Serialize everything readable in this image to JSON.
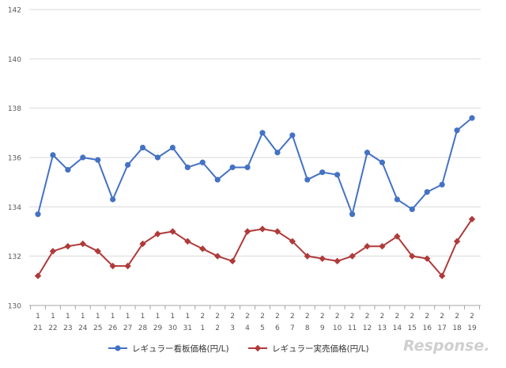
{
  "chart_data": {
    "type": "line",
    "categories": [
      [
        "1",
        "21"
      ],
      [
        "1",
        "22"
      ],
      [
        "1",
        "23"
      ],
      [
        "1",
        "24"
      ],
      [
        "1",
        "25"
      ],
      [
        "1",
        "26"
      ],
      [
        "1",
        "27"
      ],
      [
        "1",
        "28"
      ],
      [
        "1",
        "29"
      ],
      [
        "1",
        "30"
      ],
      [
        "1",
        "31"
      ],
      [
        "2",
        "1"
      ],
      [
        "2",
        "2"
      ],
      [
        "2",
        "3"
      ],
      [
        "2",
        "4"
      ],
      [
        "2",
        "5"
      ],
      [
        "2",
        "6"
      ],
      [
        "2",
        "7"
      ],
      [
        "2",
        "8"
      ],
      [
        "2",
        "9"
      ],
      [
        "2",
        "10"
      ],
      [
        "2",
        "11"
      ],
      [
        "2",
        "12"
      ],
      [
        "2",
        "13"
      ],
      [
        "2",
        "14"
      ],
      [
        "2",
        "15"
      ],
      [
        "2",
        "16"
      ],
      [
        "2",
        "17"
      ],
      [
        "2",
        "18"
      ],
      [
        "2",
        "19"
      ]
    ],
    "series": [
      {
        "name": "レギュラー看板価格(円/L)",
        "color": "#4472C4",
        "marker": "circle",
        "values": [
          133.7,
          136.1,
          135.5,
          136.0,
          135.9,
          134.3,
          135.7,
          136.4,
          136.0,
          136.4,
          135.6,
          135.8,
          135.1,
          135.6,
          135.6,
          137.0,
          136.2,
          136.9,
          135.1,
          135.4,
          135.3,
          133.7,
          136.2,
          135.8,
          134.3,
          133.9,
          134.6,
          134.9,
          137.1,
          137.6
        ]
      },
      {
        "name": "レギュラー実売価格(円/L)",
        "color": "#B03A3A",
        "marker": "diamond",
        "values": [
          131.2,
          132.2,
          132.4,
          132.5,
          132.2,
          131.6,
          131.6,
          132.5,
          132.9,
          133.0,
          132.6,
          132.3,
          132.0,
          131.8,
          133.0,
          133.1,
          133.0,
          132.6,
          132.0,
          131.9,
          131.8,
          132.0,
          132.4,
          132.4,
          132.8,
          132.0,
          131.9,
          131.2,
          132.6,
          133.5
        ]
      }
    ],
    "yticks": [
      "130",
      "132",
      "134",
      "136",
      "138",
      "140",
      "142"
    ],
    "ylim": [
      130,
      142
    ],
    "grid": true,
    "legend": "bottom",
    "title": "",
    "xlabel": "",
    "ylabel": ""
  },
  "watermark": {
    "name": "response-logo-watermark",
    "text": "Response."
  },
  "colors": {
    "grid": "#d9d9d9",
    "axis": "#a6a6a6",
    "tick_text": "#595959"
  }
}
